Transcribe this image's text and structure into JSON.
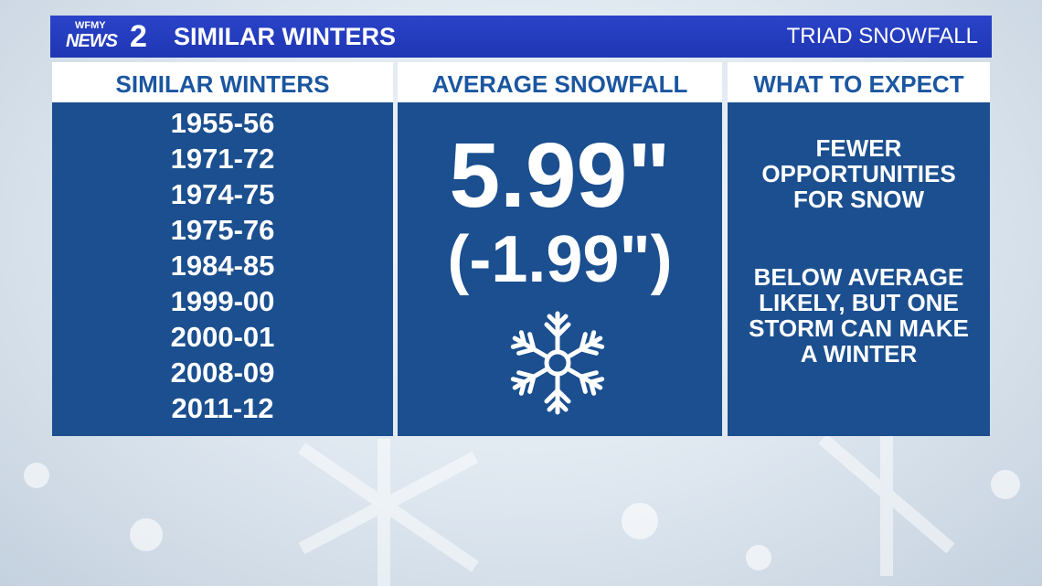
{
  "header": {
    "logo": {
      "station": "WFMY",
      "brand": "NEWS",
      "channel": "2"
    },
    "title": "SIMILAR WINTERS",
    "subtitle": "TRIAD SNOWFALL"
  },
  "columns": [
    {
      "heading": "SIMILAR WINTERS",
      "items": [
        "1955-56",
        "1971-72",
        "1974-75",
        "1975-76",
        "1984-85",
        "1999-00",
        "2000-01",
        "2008-09",
        "2011-12"
      ]
    },
    {
      "heading": "AVERAGE SNOWFALL",
      "value": "5.99\"",
      "difference": "(-1.99\")"
    },
    {
      "heading": "WHAT TO EXPECT",
      "notes": [
        [
          "FEWER",
          "OPPORTUNITIES",
          "FOR SNOW"
        ],
        [
          "BELOW AVERAGE",
          "LIKELY, BUT ONE",
          "STORM CAN MAKE",
          "A WINTER"
        ]
      ]
    }
  ]
}
